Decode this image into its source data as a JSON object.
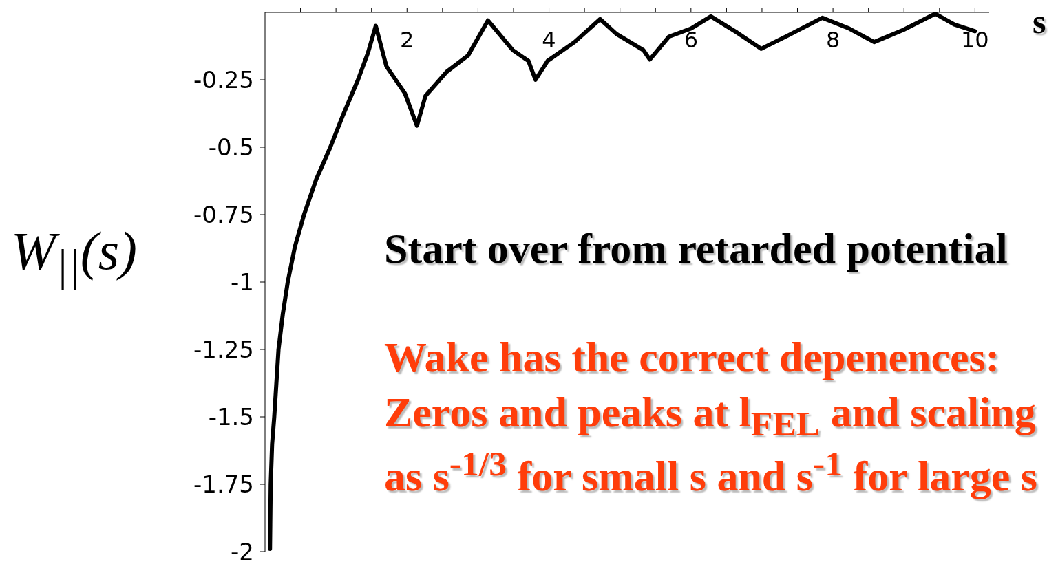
{
  "chart_data": {
    "type": "line",
    "xlabel": "s",
    "ylabel": "W$_{||}$(s)",
    "x": [
      0.07,
      0.08,
      0.1,
      0.13,
      0.19,
      0.25,
      0.32,
      0.42,
      0.55,
      0.72,
      0.92,
      1.1,
      1.31,
      1.45,
      1.56,
      1.71,
      1.97,
      2.14,
      2.26,
      2.56,
      2.86,
      3.14,
      3.49,
      3.71,
      3.81,
      3.98,
      4.36,
      4.72,
      4.95,
      5.33,
      5.42,
      5.69,
      6.0,
      6.28,
      6.65,
      6.99,
      7.37,
      7.85,
      8.23,
      8.58,
      8.99,
      9.44,
      9.71,
      10.0
    ],
    "series": [
      {
        "color": "#000000",
        "values": [
          -1.99,
          -1.75,
          -1.6,
          -1.5,
          -1.25,
          -1.12,
          -1.0,
          -0.87,
          -0.75,
          -0.62,
          -0.5,
          -0.38,
          -0.25,
          -0.15,
          -0.05,
          -0.2,
          -0.3,
          -0.42,
          -0.31,
          -0.22,
          -0.16,
          -0.03,
          -0.14,
          -0.18,
          -0.25,
          -0.18,
          -0.11,
          -0.025,
          -0.08,
          -0.14,
          -0.175,
          -0.09,
          -0.06,
          -0.015,
          -0.075,
          -0.135,
          -0.085,
          -0.02,
          -0.06,
          -0.11,
          -0.065,
          -0.005,
          -0.045,
          -0.07
        ]
      }
    ],
    "xlim": [
      0,
      10.2
    ],
    "ylim": [
      -2,
      0
    ],
    "xticks": [
      {
        "value": 0.5,
        "label": null
      },
      {
        "value": 1,
        "label": null
      },
      {
        "value": 1.5,
        "label": null
      },
      2,
      {
        "value": 2.5,
        "label": null
      },
      {
        "value": 3,
        "label": null
      },
      {
        "value": 3.5,
        "label": null
      },
      4,
      {
        "value": 4.5,
        "label": null
      },
      {
        "value": 5,
        "label": null
      },
      {
        "value": 5.5,
        "label": null
      },
      6,
      {
        "value": 6.5,
        "label": null
      },
      {
        "value": 7,
        "label": null
      },
      {
        "value": 7.5,
        "label": null
      },
      8,
      {
        "value": 8.5,
        "label": null
      },
      {
        "value": 9,
        "label": null
      },
      {
        "value": 9.5,
        "label": null
      },
      10
    ],
    "yticks": [
      -2,
      -1.75,
      -1.5,
      -1.25,
      -1,
      -0.75,
      -0.5,
      -0.25
    ],
    "grid": false,
    "legend": false,
    "line_style": "solid",
    "annotations": [
      "Start over from retarded potential",
      "Wake has the correct depenences:",
      "Zeros and peaks at l$_{FEL}$ and scaling",
      "as s$^{-1/3}$ for small s and s$^{-1}$ for large s"
    ]
  }
}
